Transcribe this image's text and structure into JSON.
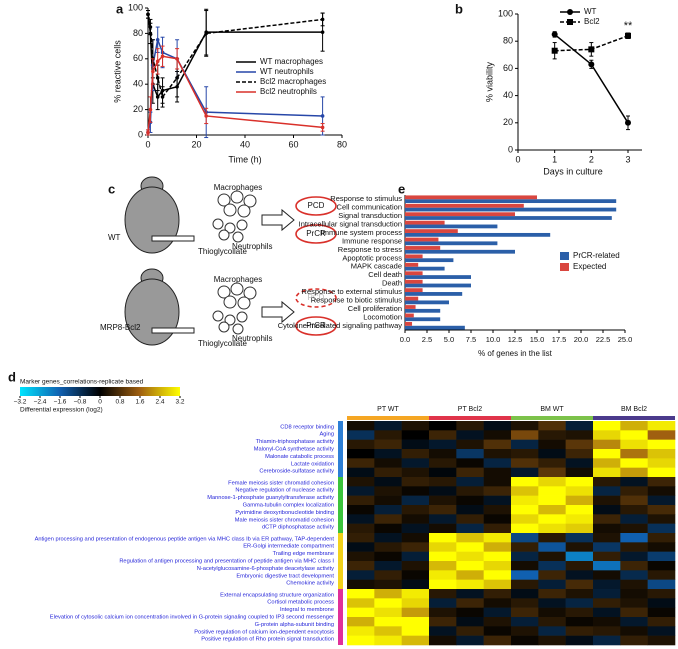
{
  "chart_data": [
    {
      "panel": "a",
      "type": "line",
      "xlabel": "Time (h)",
      "ylabel": "% reactive cells",
      "x": [
        0,
        1,
        2,
        4,
        6,
        12,
        24,
        72
      ],
      "xlim": [
        0,
        80
      ],
      "xticks": [
        0,
        20,
        40,
        60,
        80
      ],
      "ylim": [
        0,
        100
      ],
      "yticks": [
        0,
        20,
        40,
        60,
        80,
        100
      ],
      "series": [
        {
          "name": "WT macrophages",
          "color": "#000000",
          "dash": false,
          "values": [
            95,
            80,
            40,
            30,
            35,
            38,
            81,
            81
          ],
          "errors": [
            3,
            8,
            15,
            10,
            10,
            12,
            18,
            15
          ]
        },
        {
          "name": "WT neutrophils",
          "color": "#2747a8",
          "dash": false,
          "values": [
            2,
            10,
            55,
            75,
            65,
            60,
            18,
            15
          ],
          "errors": [
            2,
            8,
            20,
            10,
            12,
            15,
            20,
            15
          ]
        },
        {
          "name": "Bcl2 macrophages",
          "color": "#000000",
          "dash": true,
          "values": [
            95,
            85,
            60,
            45,
            30,
            45,
            80,
            91
          ],
          "errors": [
            3,
            6,
            15,
            10,
            8,
            15,
            18,
            5
          ]
        },
        {
          "name": "Bcl2 neutrophils",
          "color": "#d9302a",
          "dash": false,
          "values": [
            2,
            20,
            50,
            58,
            62,
            60,
            15,
            6
          ],
          "errors": [
            2,
            10,
            10,
            10,
            8,
            8,
            6,
            3
          ]
        }
      ]
    },
    {
      "panel": "b",
      "type": "line",
      "xlabel": "Days in culture",
      "ylabel": "% viability",
      "x": [
        1,
        2,
        3
      ],
      "xlim": [
        0,
        3
      ],
      "xticks": [
        0,
        1,
        2,
        3
      ],
      "ylim": [
        0,
        100
      ],
      "yticks": [
        0,
        20,
        40,
        60,
        80,
        100
      ],
      "annotation": "**",
      "series": [
        {
          "name": "WT",
          "color": "#000000",
          "dash": false,
          "values": [
            85,
            63,
            20
          ],
          "errors": [
            2,
            3,
            5
          ]
        },
        {
          "name": "Bcl2",
          "color": "#000000",
          "dash": true,
          "values": [
            73,
            74,
            84
          ],
          "errors": [
            6,
            5,
            2
          ]
        }
      ]
    },
    {
      "panel": "e",
      "type": "barh",
      "xlabel": "% of genes in the list",
      "categories": [
        "Response to stimulus",
        "Cell communication",
        "Signal transduction",
        "Intracellular signal transduction",
        "Immune system process",
        "Immune response",
        "Response to stress",
        "Apoptotic process",
        "MAPK cascade",
        "Cell death",
        "Death",
        "Response to external stimulus",
        "Response to biotic stimulus",
        "Cell proliferation",
        "Locomotion",
        "Cytokine-mediated signaling pathway"
      ],
      "xlim": [
        0,
        25
      ],
      "xticks": [
        {
          "value": 0,
          "label": "0.0"
        },
        2.5,
        {
          "value": 5,
          "label": "5.0"
        },
        7.5,
        {
          "value": 10,
          "label": "10.0"
        },
        12.5,
        {
          "value": 15,
          "label": "15.0"
        },
        17.5,
        {
          "value": 20,
          "label": "20.0"
        },
        22.5,
        {
          "value": 25,
          "label": "25.0"
        }
      ],
      "series": [
        {
          "name": "PrCR-related",
          "color": "#2b5fa8",
          "values": [
            24,
            24,
            23.5,
            10.5,
            16.5,
            10.5,
            12.5,
            5.5,
            4.5,
            7.5,
            7.5,
            6.5,
            5,
            4,
            4,
            6.8
          ]
        },
        {
          "name": "Expected",
          "color": "#d9463f",
          "values": [
            15,
            13.5,
            12.5,
            4.5,
            6,
            3.8,
            4,
            2,
            1.5,
            2,
            2,
            2,
            1.5,
            1.2,
            1,
            0.8
          ]
        }
      ]
    },
    {
      "panel": "d",
      "type": "heatmap",
      "title": "Marker genes_correlations-replicate based",
      "colorbar_label": "Differential expression (log2)",
      "zlim": [
        -3.2,
        3.2
      ],
      "zticks": [
        {
          "value": -3.2,
          "label": "−3.2"
        },
        {
          "value": -2.4,
          "label": "−2.4"
        },
        {
          "value": -1.6,
          "label": "−1.6"
        },
        {
          "value": -0.8,
          "label": "−0.8"
        },
        0,
        0.8,
        1.6,
        2.4,
        3.2
      ],
      "colors": [
        "#00e5ff",
        "#1060b0",
        "#000000",
        "#a06010",
        "#ffff00"
      ],
      "column_groups": [
        {
          "name": "PT WT",
          "color": "#f5a623"
        },
        {
          "name": "PT Bcl2",
          "color": "#e0344a"
        },
        {
          "name": "BM WT",
          "color": "#7cc24a"
        },
        {
          "name": "BM Bcl2",
          "color": "#4b3a8c"
        }
      ],
      "row_groups": [
        {
          "color": "#2d7fd6",
          "terms": [
            "CD8 receptor binding",
            "Aging",
            "Thiamin-triphosphatase activity",
            "Malonyl-CoA synthetase activity",
            "Malonate catabolic process",
            "Lactate oxidation",
            "Cerebroside-sulfatase activity"
          ],
          "rows": [
            [
              0.2,
              -0.4,
              0.3,
              0,
              0.4,
              -0.2,
              0.3,
              0.8,
              -0.5,
              3.2,
              2.4,
              3.0
            ],
            [
              -0.8,
              0.4,
              0,
              0.6,
              -0.3,
              0.2,
              1.2,
              0.4,
              0.3,
              2.8,
              3.2,
              1.6
            ],
            [
              0.4,
              0.6,
              -0.2,
              -0.4,
              0.3,
              0.8,
              -0.6,
              0.2,
              0.9,
              2.0,
              2.9,
              3.2
            ],
            [
              0,
              -0.3,
              0.5,
              0.2,
              -0.9,
              0.3,
              0.4,
              -0.2,
              0.6,
              3.2,
              1.8,
              2.6
            ],
            [
              0.6,
              0.2,
              -0.4,
              0.4,
              0.1,
              -0.6,
              0.8,
              0.5,
              -0.3,
              2.4,
              3.2,
              2.8
            ],
            [
              -0.2,
              0.5,
              0.3,
              -0.1,
              0.6,
              0.2,
              -0.4,
              0.9,
              0.2,
              2.9,
              2.2,
              3.2
            ]
          ]
        },
        {
          "color": "#3cc43c",
          "terms": [
            "Female meiosis sister chromatid cohesion",
            "Negative regulation of nuclease activity",
            "Mannose-1-phosphate guanylyltransferase activity",
            "Gamma-tubulin complex localization",
            "Pyrimidine deoxyribonucleotide binding",
            "Male meiosis sister chromatid cohesion",
            "dCTP diphosphatase activity"
          ],
          "rows": [
            [
              0.3,
              -0.2,
              0.5,
              0.4,
              -0.5,
              0.2,
              3.2,
              2.8,
              3.2,
              0.4,
              -0.3,
              0.6
            ],
            [
              -0.4,
              0.3,
              0.1,
              -0.2,
              0.4,
              0.6,
              2.6,
              3.2,
              2.9,
              -0.6,
              0.5,
              0.2
            ],
            [
              0.5,
              0.2,
              -0.6,
              0.3,
              0.1,
              -0.3,
              3.0,
              3.2,
              2.4,
              0.3,
              0.8,
              -0.4
            ],
            [
              0.1,
              -0.5,
              0.4,
              0.6,
              -0.2,
              0.3,
              3.2,
              2.5,
              3.2,
              -0.2,
              0.4,
              0.7
            ],
            [
              -0.3,
              0.6,
              0.2,
              -0.4,
              0.5,
              0.1,
              2.8,
              3.2,
              3.0,
              0.6,
              -0.5,
              0.3
            ],
            [
              0.4,
              0.1,
              -0.3,
              0.2,
              -0.6,
              0.5,
              3.2,
              2.9,
              2.7,
              0.2,
              0.3,
              -0.8
            ]
          ]
        },
        {
          "color": "#f2d21b",
          "terms": [
            "Antigen processing and presentation of endogenous peptide antigen via MHC class Ib via ER pathway, TAP-dependent",
            "ER-Golgi intermediate compartment",
            "Trailing edge membrane",
            "Regulation of antigen processing and presentation of peptide antigen via MHC class I",
            "N-acetylglucosamine-6-phosphate deacetylase activity",
            "Embryonic digestive tract development",
            "Chemokine activity"
          ],
          "rows": [
            [
              0.5,
              -0.3,
              0.2,
              3.2,
              2.6,
              3.0,
              -1.2,
              0.4,
              -0.8,
              0.3,
              -1.6,
              0.5
            ],
            [
              -0.2,
              0.4,
              0.6,
              2.8,
              3.2,
              2.4,
              0.5,
              -1.4,
              0.3,
              -0.9,
              0.4,
              0.2
            ],
            [
              0.3,
              0.1,
              -0.5,
              3.2,
              2.9,
              3.2,
              -0.6,
              0.3,
              -2.0,
              0.5,
              -0.4,
              -1.0
            ],
            [
              0.6,
              -0.4,
              0.3,
              2.5,
              3.2,
              2.8,
              0.2,
              -0.8,
              0.4,
              -1.8,
              0.6,
              0.1
            ],
            [
              -0.5,
              0.5,
              0.1,
              3.0,
              2.4,
              3.2,
              -1.6,
              0.6,
              -0.3,
              0.2,
              -0.7,
              0.4
            ],
            [
              0.2,
              0.3,
              -0.2,
              3.2,
              3.0,
              2.6,
              0.4,
              -0.5,
              0.7,
              -0.4,
              0.3,
              -1.2
            ]
          ]
        },
        {
          "color": "#e0309a",
          "terms": [
            "External encapsulating structure organization",
            "Cortisol metabolic process",
            "Integral to membrone",
            "Elevation of cytosolic calcium ion concentration involved in G-protein signaling coupled to IP3 second messenger",
            "G-protein alpha-subunit binding",
            "Positive regulation of calcium ion-dependent exocytosis",
            "Positive regulation of Rho protein signal transduction"
          ],
          "rows": [
            [
              3.2,
              2.4,
              3.0,
              0.4,
              -0.3,
              0.5,
              -0.2,
              0.6,
              0.3,
              -0.5,
              0.2,
              0.4
            ],
            [
              2.6,
              3.2,
              2.8,
              -0.5,
              0.6,
              0.2,
              0.4,
              -0.3,
              -0.6,
              0.5,
              0.3,
              -0.2
            ],
            [
              3.2,
              2.9,
              2.2,
              0.3,
              0.1,
              -0.4,
              0.6,
              0.2,
              0.4,
              -0.3,
              0.6,
              0.1
            ],
            [
              2.4,
              3.2,
              3.2,
              0.6,
              -0.2,
              0.3,
              -0.5,
              0.4,
              0.1,
              0.2,
              -0.4,
              0.5
            ],
            [
              3.0,
              2.6,
              3.2,
              -0.3,
              0.5,
              0.1,
              0.3,
              -0.6,
              0.5,
              0.4,
              0.2,
              -0.3
            ],
            [
              3.2,
              3.0,
              2.5,
              0.2,
              -0.4,
              0.6,
              0.1,
              0.3,
              -0.2,
              -0.6,
              0.5,
              0.3
            ]
          ]
        }
      ]
    }
  ],
  "diagram": {
    "panel": "c",
    "rows": [
      {
        "genotype": "WT",
        "macrophages": "Macrophages",
        "neutrophils": "Neutrophils",
        "stimulus": "Thioglycollate",
        "outcomes": [
          "PCD",
          "PrCR"
        ]
      },
      {
        "genotype": "MRP8-Bcl2",
        "macrophages": "Macrophages",
        "neutrophils": "Neutrophils",
        "stimulus": "Thioglycollate",
        "outcomes": [
          "PCD",
          "PrCR"
        ]
      }
    ]
  }
}
